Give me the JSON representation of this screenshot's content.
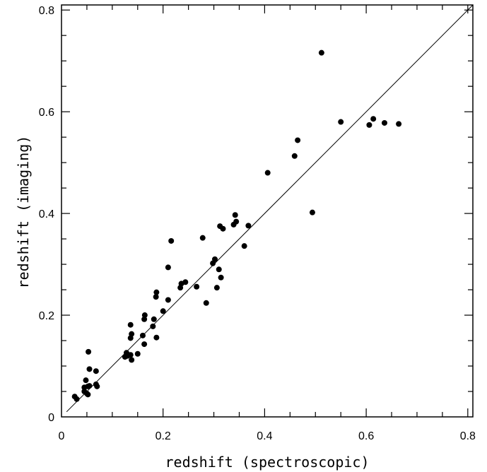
{
  "chart_data": {
    "type": "scatter",
    "title": "",
    "xlabel": "redshift (spectroscopic)",
    "ylabel": "redshift (imaging)",
    "xlim": [
      0,
      0.81
    ],
    "ylim": [
      0,
      0.81
    ],
    "x_ticks": [
      "0",
      "0.2",
      "0.4",
      "0.6",
      "0.8"
    ],
    "y_ticks": [
      "0",
      "0.2",
      "0.4",
      "0.6",
      "0.8"
    ],
    "reference_line": {
      "from": [
        0.01,
        0.01
      ],
      "to": [
        0.81,
        0.81
      ]
    },
    "grid": false,
    "legend": "none",
    "colors": {
      "points": "#000000",
      "line": "#000000"
    },
    "points": [
      {
        "x": 0.026,
        "y": 0.04
      },
      {
        "x": 0.03,
        "y": 0.035
      },
      {
        "x": 0.045,
        "y": 0.05
      },
      {
        "x": 0.045,
        "y": 0.058
      },
      {
        "x": 0.048,
        "y": 0.072
      },
      {
        "x": 0.05,
        "y": 0.046
      },
      {
        "x": 0.052,
        "y": 0.044
      },
      {
        "x": 0.052,
        "y": 0.06
      },
      {
        "x": 0.055,
        "y": 0.061
      },
      {
        "x": 0.053,
        "y": 0.128
      },
      {
        "x": 0.055,
        "y": 0.094
      },
      {
        "x": 0.068,
        "y": 0.064
      },
      {
        "x": 0.07,
        "y": 0.06
      },
      {
        "x": 0.068,
        "y": 0.09
      },
      {
        "x": 0.125,
        "y": 0.118
      },
      {
        "x": 0.128,
        "y": 0.126
      },
      {
        "x": 0.13,
        "y": 0.12
      },
      {
        "x": 0.136,
        "y": 0.122
      },
      {
        "x": 0.138,
        "y": 0.112
      },
      {
        "x": 0.136,
        "y": 0.155
      },
      {
        "x": 0.138,
        "y": 0.163
      },
      {
        "x": 0.136,
        "y": 0.181
      },
      {
        "x": 0.15,
        "y": 0.124
      },
      {
        "x": 0.16,
        "y": 0.16
      },
      {
        "x": 0.163,
        "y": 0.143
      },
      {
        "x": 0.163,
        "y": 0.192
      },
      {
        "x": 0.164,
        "y": 0.2
      },
      {
        "x": 0.18,
        "y": 0.178
      },
      {
        "x": 0.182,
        "y": 0.192
      },
      {
        "x": 0.187,
        "y": 0.156
      },
      {
        "x": 0.186,
        "y": 0.236
      },
      {
        "x": 0.187,
        "y": 0.245
      },
      {
        "x": 0.2,
        "y": 0.208
      },
      {
        "x": 0.21,
        "y": 0.23
      },
      {
        "x": 0.21,
        "y": 0.294
      },
      {
        "x": 0.216,
        "y": 0.346
      },
      {
        "x": 0.234,
        "y": 0.254
      },
      {
        "x": 0.236,
        "y": 0.262
      },
      {
        "x": 0.244,
        "y": 0.265
      },
      {
        "x": 0.266,
        "y": 0.256
      },
      {
        "x": 0.278,
        "y": 0.352
      },
      {
        "x": 0.285,
        "y": 0.224
      },
      {
        "x": 0.298,
        "y": 0.302
      },
      {
        "x": 0.302,
        "y": 0.31
      },
      {
        "x": 0.306,
        "y": 0.254
      },
      {
        "x": 0.31,
        "y": 0.29
      },
      {
        "x": 0.312,
        "y": 0.375
      },
      {
        "x": 0.314,
        "y": 0.274
      },
      {
        "x": 0.318,
        "y": 0.37
      },
      {
        "x": 0.339,
        "y": 0.378
      },
      {
        "x": 0.342,
        "y": 0.397
      },
      {
        "x": 0.344,
        "y": 0.384
      },
      {
        "x": 0.36,
        "y": 0.336
      },
      {
        "x": 0.368,
        "y": 0.376
      },
      {
        "x": 0.406,
        "y": 0.48
      },
      {
        "x": 0.459,
        "y": 0.513
      },
      {
        "x": 0.465,
        "y": 0.544
      },
      {
        "x": 0.494,
        "y": 0.402
      },
      {
        "x": 0.512,
        "y": 0.716
      },
      {
        "x": 0.55,
        "y": 0.58
      },
      {
        "x": 0.606,
        "y": 0.574
      },
      {
        "x": 0.614,
        "y": 0.586
      },
      {
        "x": 0.636,
        "y": 0.578
      },
      {
        "x": 0.664,
        "y": 0.576
      }
    ]
  }
}
